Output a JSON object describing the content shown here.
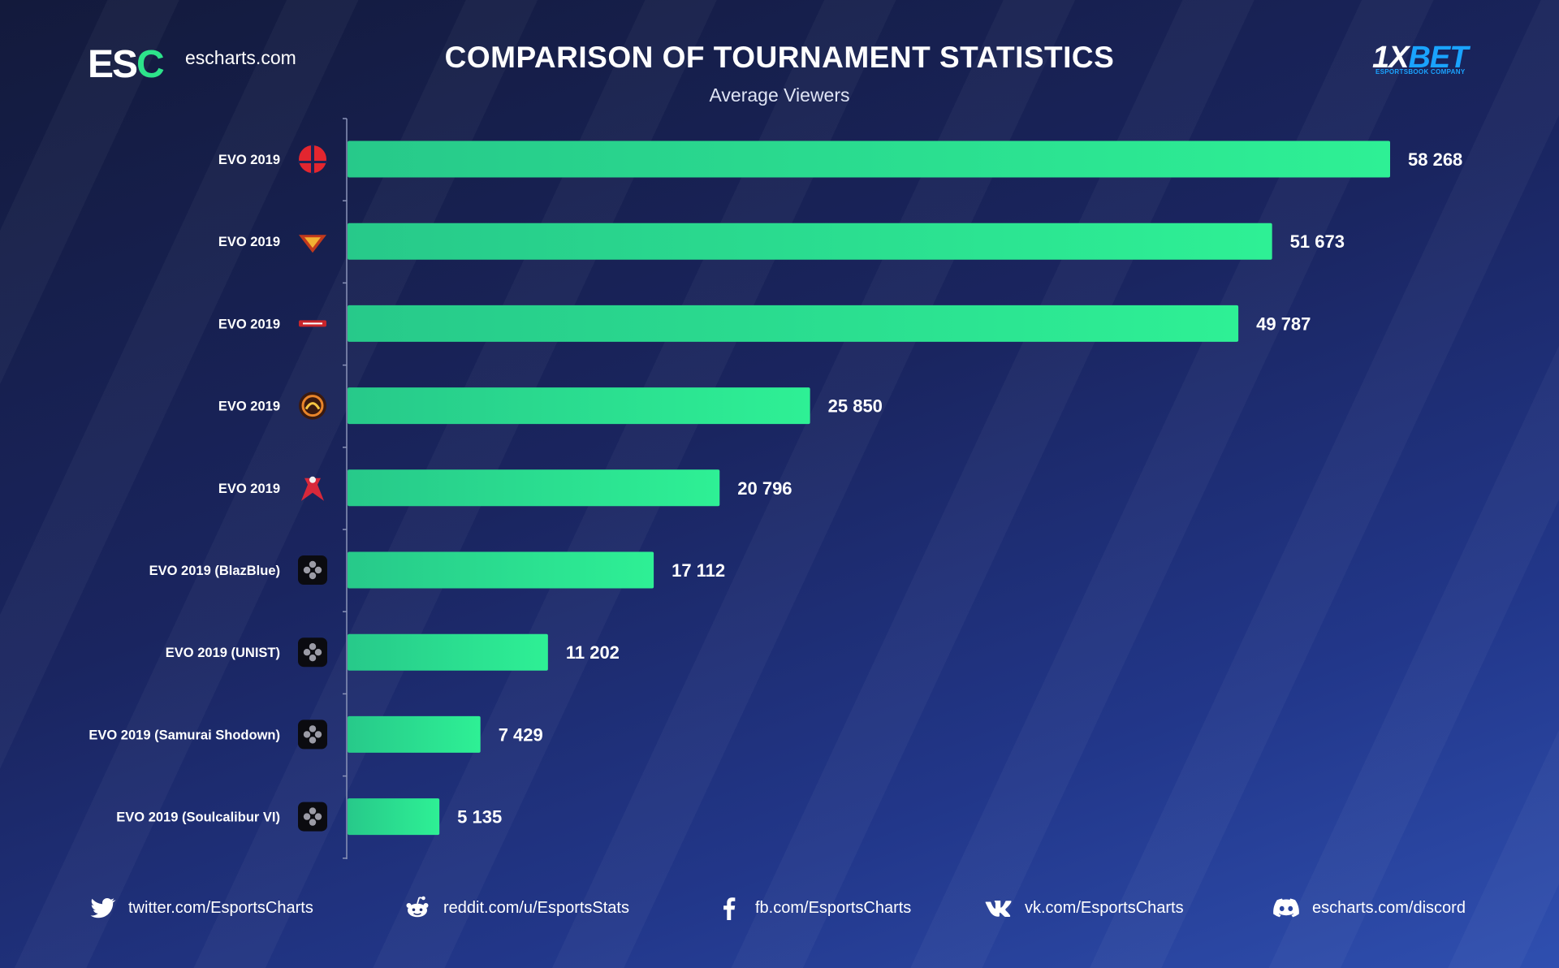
{
  "header": {
    "logo_text": "ESC",
    "site": "escharts.com",
    "title": "COMPARISON OF TOURNAMENT STATISTICS",
    "subtitle": "Average Viewers",
    "sponsor": "1XBET",
    "sponsor_tagline": "ESPORTSBOOK COMPANY"
  },
  "chart_data": {
    "type": "bar",
    "orientation": "horizontal",
    "title": "COMPARISON OF TOURNAMENT STATISTICS",
    "subtitle": "Average Viewers",
    "categories": [
      "EVO 2019",
      "EVO 2019",
      "EVO 2019",
      "EVO 2019",
      "EVO 2019",
      "EVO 2019 (BlazBlue)",
      "EVO 2019 (UNIST)",
      "EVO 2019 (Samurai Shodown)",
      "EVO 2019 (Soulcalibur VI)"
    ],
    "values": [
      58268,
      51673,
      49787,
      25850,
      20796,
      17112,
      11202,
      7429,
      5135
    ],
    "value_labels": [
      "58 268",
      "51 673",
      "49 787",
      "25 850",
      "20 796",
      "17 112",
      "11 202",
      "7 429",
      "5 135"
    ],
    "icons": [
      "smash-icon",
      "street-fighter-icon",
      "tekken-icon",
      "mortal-kombat-icon",
      "soulcalibur-icon",
      "gamepad-icon",
      "gamepad-icon",
      "gamepad-icon",
      "gamepad-icon"
    ],
    "xlim": [
      0,
      58268
    ],
    "grid": false,
    "bar_color_start": "#27c98a",
    "bar_color_end": "#2ef095"
  },
  "footer": {
    "twitter": "twitter.com/EsportsCharts",
    "reddit": "reddit.com/u/EsportsStats",
    "facebook": "fb.com/EsportsCharts",
    "vk": "vk.com/EsportsCharts",
    "discord": "escharts.com/discord"
  },
  "colors": {
    "background": "#1a2560",
    "accent": "#2de38a",
    "sponsor": "#1aa3ff"
  }
}
